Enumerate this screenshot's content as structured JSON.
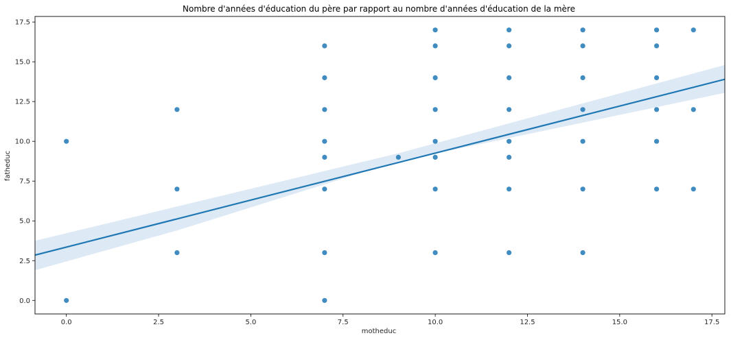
{
  "chart_data": {
    "type": "scatter",
    "title": "Nombre d'années d'éducation du père par rapport au nombre d'années d'éducation de la mère",
    "xlabel": "motheduc",
    "ylabel": "fatheduc",
    "xlim": [
      -0.85,
      17.85
    ],
    "ylim": [
      -0.85,
      17.85
    ],
    "xticks": [
      0.0,
      2.5,
      5.0,
      7.5,
      10.0,
      12.5,
      15.0,
      17.5
    ],
    "xtick_labels": [
      "0.0",
      "2.5",
      "5.0",
      "7.5",
      "10.0",
      "12.5",
      "15.0",
      "17.5"
    ],
    "yticks": [
      0.0,
      2.5,
      5.0,
      7.5,
      10.0,
      12.5,
      15.0,
      17.5
    ],
    "ytick_labels": [
      "0.0",
      "2.5",
      "5.0",
      "7.5",
      "10.0",
      "12.5",
      "15.0",
      "17.5"
    ],
    "grid": false,
    "points": [
      [
        0,
        10
      ],
      [
        0,
        0
      ],
      [
        3,
        12
      ],
      [
        3,
        7
      ],
      [
        3,
        3
      ],
      [
        7,
        16
      ],
      [
        7,
        14
      ],
      [
        7,
        12
      ],
      [
        7,
        10
      ],
      [
        7,
        9
      ],
      [
        7,
        7
      ],
      [
        7,
        3
      ],
      [
        7,
        0
      ],
      [
        9,
        9
      ],
      [
        10,
        17
      ],
      [
        10,
        16
      ],
      [
        10,
        14
      ],
      [
        10,
        12
      ],
      [
        10,
        10
      ],
      [
        10,
        9
      ],
      [
        10,
        7
      ],
      [
        10,
        3
      ],
      [
        12,
        17
      ],
      [
        12,
        16
      ],
      [
        12,
        14
      ],
      [
        12,
        12
      ],
      [
        12,
        10
      ],
      [
        12,
        9
      ],
      [
        12,
        7
      ],
      [
        12,
        3
      ],
      [
        14,
        17
      ],
      [
        14,
        16
      ],
      [
        14,
        14
      ],
      [
        14,
        12
      ],
      [
        14,
        10
      ],
      [
        14,
        7
      ],
      [
        14,
        3
      ],
      [
        16,
        17
      ],
      [
        16,
        16
      ],
      [
        16,
        14
      ],
      [
        16,
        12
      ],
      [
        16,
        10
      ],
      [
        16,
        7
      ],
      [
        17,
        17
      ],
      [
        17,
        12
      ],
      [
        17,
        7
      ]
    ],
    "regression": {
      "x_range": [
        -0.85,
        17.85
      ],
      "y_at_start": 2.85,
      "y_at_end": 13.9,
      "ci_upper": [
        [
          -0.85,
          3.75
        ],
        [
          3.0,
          5.9
        ],
        [
          9.0,
          9.25
        ],
        [
          17.85,
          14.8
        ]
      ],
      "ci_lower": [
        [
          17.85,
          13.05
        ],
        [
          9.0,
          8.75
        ],
        [
          3.0,
          4.4
        ],
        [
          -0.85,
          1.9
        ]
      ]
    },
    "colors": {
      "points": "#1f77b4",
      "line": "#1f77b4",
      "band": "#c6dbef"
    }
  }
}
